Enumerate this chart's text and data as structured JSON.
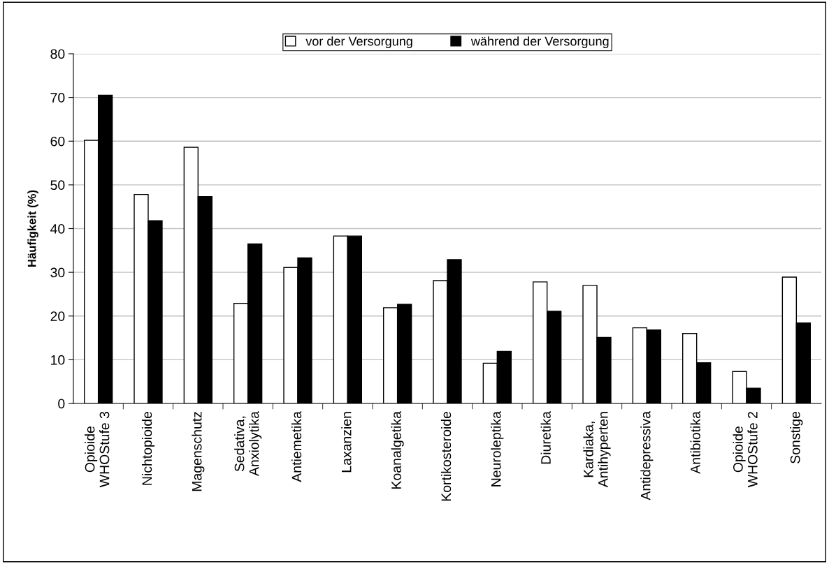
{
  "chart_data": {
    "type": "bar",
    "ylabel": "Häufigkeit (%)",
    "categories": [
      "Opioide\nWHOStufe 3",
      "Nichtopioide",
      "Magenschutz",
      "Sedativa,\nAnxiolytika",
      "Antiemetika",
      "Laxanzien",
      "Koanalgetika",
      "Kortikosteroide",
      "Neuroleptika",
      "Diuretika",
      "Kardiaka,\nAntihyperten",
      "Antidepressiva",
      "Antibiotika",
      "Opioide\nWHOStufe 2",
      "Sonstige"
    ],
    "series": [
      {
        "name": "vor der Versorgung",
        "color": "#ffffff",
        "values": [
          60.2,
          47.8,
          58.6,
          22.9,
          31.1,
          38.3,
          21.9,
          28.1,
          9.2,
          27.8,
          27.0,
          17.3,
          16.0,
          7.3,
          28.9
        ]
      },
      {
        "name": "während der Versorgung",
        "color": "#000000",
        "values": [
          70.5,
          41.8,
          47.3,
          36.5,
          33.3,
          38.3,
          22.7,
          32.9,
          11.9,
          21.1,
          15.1,
          16.8,
          9.3,
          3.5,
          18.4
        ]
      }
    ],
    "ylim": [
      0,
      80
    ],
    "yticks": [
      0,
      10,
      20,
      30,
      40,
      50,
      60,
      70,
      80
    ],
    "grid": "y",
    "legend": "top"
  }
}
